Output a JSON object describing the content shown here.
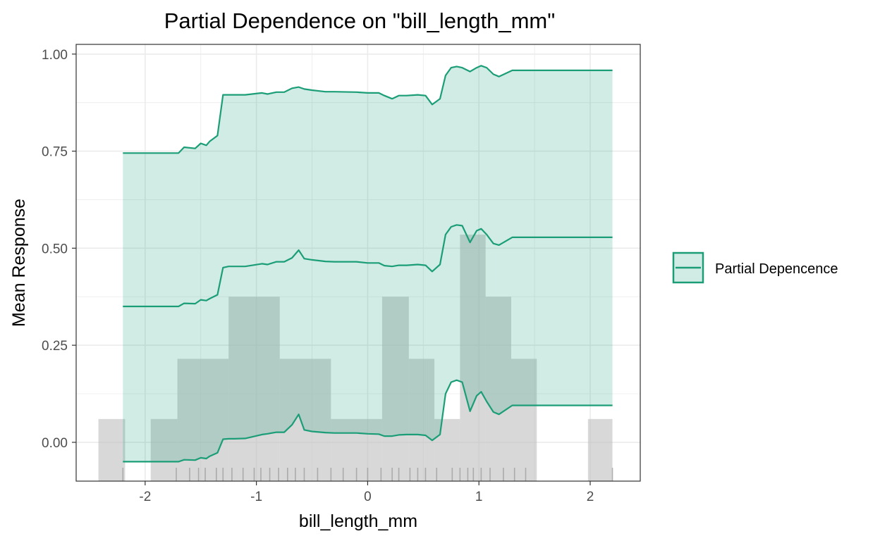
{
  "chart_data": {
    "type": "line",
    "title": "Partial Dependence on \"bill_length_mm\"",
    "xlabel": "bill_length_mm",
    "ylabel": "Mean Response",
    "xlim": [
      -2.62,
      2.45
    ],
    "ylim": [
      -0.1,
      1.025
    ],
    "x_ticks": [
      -2,
      -1,
      0,
      1,
      2
    ],
    "x_tick_labels": [
      "-2",
      "-1",
      "0",
      "1",
      "2"
    ],
    "y_ticks": [
      0,
      0.25,
      0.5,
      0.75,
      1.0
    ],
    "y_tick_labels": [
      "0.00",
      "0.25",
      "0.50",
      "0.75",
      "1.00"
    ],
    "grid": true,
    "legend_position": "right",
    "colors": {
      "line": "#1b9e77",
      "ribbon": "#1b9e77",
      "histogram": "#bebebe",
      "rug": "#999999",
      "panel_border": "#333333",
      "grid": "#ebebeb"
    },
    "series": [
      {
        "name": "Partial Depencence",
        "x": [
          -2.2,
          -1.7,
          -1.65,
          -1.55,
          -1.5,
          -1.45,
          -1.42,
          -1.35,
          -1.3,
          -1.25,
          -1.2,
          -1.1,
          -0.95,
          -0.9,
          -0.82,
          -0.75,
          -0.68,
          -0.62,
          -0.57,
          -0.5,
          -0.38,
          -0.3,
          -0.1,
          0.0,
          0.1,
          0.15,
          0.22,
          0.28,
          0.35,
          0.45,
          0.52,
          0.58,
          0.65,
          0.7,
          0.75,
          0.8,
          0.85,
          0.92,
          0.98,
          1.02,
          1.07,
          1.13,
          1.18,
          1.3,
          1.5,
          2.2
        ],
        "values": [
          0.35,
          0.35,
          0.358,
          0.357,
          0.367,
          0.365,
          0.37,
          0.38,
          0.45,
          0.453,
          0.453,
          0.453,
          0.46,
          0.458,
          0.465,
          0.465,
          0.475,
          0.495,
          0.473,
          0.47,
          0.466,
          0.465,
          0.465,
          0.462,
          0.462,
          0.455,
          0.453,
          0.456,
          0.456,
          0.458,
          0.456,
          0.44,
          0.458,
          0.535,
          0.555,
          0.56,
          0.558,
          0.515,
          0.545,
          0.55,
          0.535,
          0.512,
          0.508,
          0.528,
          0.528,
          0.528
        ]
      }
    ],
    "ribbon": {
      "x": [
        -2.2,
        -1.7,
        -1.65,
        -1.55,
        -1.5,
        -1.45,
        -1.42,
        -1.35,
        -1.3,
        -1.25,
        -1.2,
        -1.1,
        -0.95,
        -0.9,
        -0.82,
        -0.75,
        -0.68,
        -0.62,
        -0.57,
        -0.5,
        -0.38,
        -0.3,
        -0.1,
        0.0,
        0.1,
        0.15,
        0.22,
        0.28,
        0.35,
        0.45,
        0.52,
        0.58,
        0.65,
        0.7,
        0.75,
        0.8,
        0.85,
        0.92,
        0.98,
        1.02,
        1.07,
        1.13,
        1.18,
        1.3,
        1.5,
        2.2
      ],
      "upper": [
        0.745,
        0.745,
        0.76,
        0.757,
        0.77,
        0.765,
        0.775,
        0.79,
        0.895,
        0.895,
        0.895,
        0.895,
        0.9,
        0.897,
        0.902,
        0.902,
        0.912,
        0.915,
        0.91,
        0.907,
        0.903,
        0.903,
        0.902,
        0.9,
        0.9,
        0.893,
        0.885,
        0.893,
        0.893,
        0.895,
        0.893,
        0.87,
        0.885,
        0.945,
        0.965,
        0.968,
        0.965,
        0.955,
        0.965,
        0.97,
        0.965,
        0.948,
        0.942,
        0.958,
        0.958,
        0.958
      ],
      "lower": [
        -0.05,
        -0.05,
        -0.045,
        -0.046,
        -0.04,
        -0.042,
        -0.036,
        -0.027,
        0.008,
        0.009,
        0.009,
        0.01,
        0.02,
        0.022,
        0.026,
        0.026,
        0.045,
        0.072,
        0.032,
        0.028,
        0.025,
        0.024,
        0.024,
        0.022,
        0.021,
        0.016,
        0.016,
        0.019,
        0.02,
        0.02,
        0.018,
        0.005,
        0.02,
        0.125,
        0.155,
        0.16,
        0.155,
        0.08,
        0.12,
        0.13,
        0.105,
        0.078,
        0.072,
        0.095,
        0.095,
        0.095
      ]
    },
    "histogram": {
      "bins": [
        {
          "x0": -2.42,
          "x1": -2.18,
          "height": 0.06
        },
        {
          "x0": -1.95,
          "x1": -1.71,
          "height": 0.06
        },
        {
          "x0": -1.71,
          "x1": -1.25,
          "height": 0.215
        },
        {
          "x0": -1.25,
          "x1": -0.79,
          "height": 0.375
        },
        {
          "x0": -0.79,
          "x1": -0.33,
          "height": 0.215
        },
        {
          "x0": -0.33,
          "x1": 0.13,
          "height": 0.06
        },
        {
          "x0": 0.13,
          "x1": 0.37,
          "height": 0.375
        },
        {
          "x0": 0.37,
          "x1": 0.6,
          "height": 0.215
        },
        {
          "x0": 0.6,
          "x1": 0.83,
          "height": 0.06
        },
        {
          "x0": 0.83,
          "x1": 1.06,
          "height": 0.535
        },
        {
          "x0": 1.06,
          "x1": 1.29,
          "height": 0.375
        },
        {
          "x0": 1.29,
          "x1": 1.52,
          "height": 0.215
        },
        {
          "x0": 1.98,
          "x1": 2.2,
          "height": 0.06
        }
      ]
    },
    "rug": [
      -2.2,
      -1.72,
      -1.6,
      -1.52,
      -1.46,
      -1.36,
      -1.3,
      -1.22,
      -1.12,
      -1.02,
      -0.96,
      -0.88,
      -0.8,
      -0.72,
      -0.65,
      -0.57,
      -0.45,
      -0.33,
      -0.22,
      -0.1,
      0.0,
      0.12,
      0.22,
      0.28,
      0.38,
      0.45,
      0.52,
      0.62,
      0.76,
      0.83,
      0.9,
      0.95,
      1.02,
      1.1,
      1.22,
      1.32,
      1.42,
      2.2
    ]
  }
}
